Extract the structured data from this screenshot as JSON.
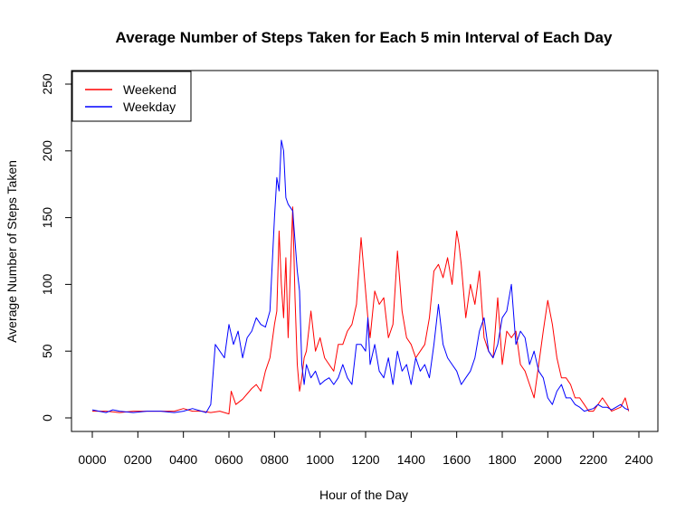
{
  "chart_data": {
    "type": "line",
    "title": "Average Number of Steps Taken for Each 5 min Interval of Each Day",
    "xlabel": "Hour of the Day",
    "ylabel": "Average Number of Steps Taken",
    "xlim": [
      0,
      2400
    ],
    "ylim": [
      0,
      250
    ],
    "xticks": [
      "0000",
      "0200",
      "0400",
      "0600",
      "0800",
      "1000",
      "1200",
      "1400",
      "1600",
      "1800",
      "2000",
      "2200",
      "2400"
    ],
    "yticks": [
      "0",
      "50",
      "100",
      "150",
      "200",
      "250"
    ],
    "grid": false,
    "legend_position": "top-left",
    "series": [
      {
        "name": "Weekend",
        "color": "#ff0000",
        "x": [
          0,
          60,
          120,
          180,
          240,
          300,
          360,
          400,
          440,
          480,
          520,
          560,
          600,
          610,
          630,
          660,
          700,
          720,
          740,
          760,
          780,
          800,
          810,
          820,
          830,
          840,
          850,
          860,
          870,
          880,
          890,
          900,
          910,
          920,
          930,
          940,
          960,
          980,
          1000,
          1020,
          1040,
          1060,
          1080,
          1100,
          1120,
          1140,
          1160,
          1180,
          1200,
          1210,
          1220,
          1240,
          1260,
          1280,
          1300,
          1320,
          1340,
          1360,
          1380,
          1400,
          1420,
          1440,
          1460,
          1480,
          1500,
          1520,
          1540,
          1560,
          1580,
          1600,
          1610,
          1620,
          1640,
          1660,
          1680,
          1700,
          1720,
          1740,
          1760,
          1780,
          1800,
          1820,
          1840,
          1860,
          1880,
          1900,
          1920,
          1940,
          1960,
          1980,
          2000,
          2020,
          2040,
          2060,
          2080,
          2100,
          2120,
          2140,
          2160,
          2180,
          2200,
          2240,
          2280,
          2320,
          2340,
          2355
        ],
        "y": [
          5,
          5,
          4,
          5,
          5,
          5,
          5,
          7,
          5,
          5,
          4,
          5,
          3,
          20,
          10,
          14,
          22,
          25,
          20,
          35,
          45,
          70,
          80,
          140,
          100,
          75,
          120,
          60,
          110,
          158,
          90,
          40,
          20,
          30,
          45,
          50,
          80,
          50,
          60,
          45,
          40,
          35,
          55,
          55,
          65,
          70,
          85,
          135,
          95,
          75,
          60,
          95,
          85,
          90,
          60,
          70,
          125,
          80,
          60,
          55,
          45,
          50,
          55,
          75,
          110,
          115,
          105,
          120,
          100,
          140,
          130,
          115,
          75,
          100,
          85,
          110,
          60,
          50,
          45,
          90,
          40,
          65,
          60,
          65,
          40,
          35,
          25,
          15,
          40,
          65,
          88,
          70,
          45,
          30,
          30,
          25,
          15,
          15,
          10,
          5,
          5,
          15,
          5,
          8,
          15,
          5
        ]
      },
      {
        "name": "Weekday",
        "color": "#0000ff",
        "x": [
          0,
          30,
          60,
          90,
          120,
          180,
          240,
          300,
          360,
          400,
          440,
          480,
          500,
          520,
          540,
          560,
          580,
          600,
          620,
          640,
          660,
          680,
          700,
          720,
          740,
          760,
          780,
          800,
          810,
          820,
          830,
          840,
          850,
          860,
          880,
          900,
          910,
          920,
          930,
          940,
          960,
          980,
          1000,
          1020,
          1040,
          1060,
          1080,
          1100,
          1120,
          1140,
          1160,
          1180,
          1200,
          1210,
          1220,
          1240,
          1260,
          1280,
          1300,
          1320,
          1340,
          1360,
          1380,
          1400,
          1420,
          1440,
          1460,
          1480,
          1500,
          1520,
          1540,
          1560,
          1580,
          1600,
          1620,
          1640,
          1660,
          1680,
          1700,
          1720,
          1740,
          1760,
          1780,
          1800,
          1820,
          1840,
          1860,
          1880,
          1900,
          1920,
          1940,
          1960,
          1980,
          2000,
          2020,
          2040,
          2060,
          2080,
          2100,
          2120,
          2140,
          2160,
          2180,
          2200,
          2220,
          2240,
          2260,
          2280,
          2300,
          2320,
          2340,
          2355
        ],
        "y": [
          6,
          5,
          4,
          6,
          5,
          4,
          5,
          5,
          4,
          5,
          7,
          5,
          4,
          10,
          55,
          50,
          45,
          70,
          55,
          65,
          45,
          60,
          65,
          75,
          70,
          68,
          80,
          150,
          180,
          170,
          208,
          200,
          165,
          160,
          155,
          110,
          95,
          40,
          25,
          40,
          30,
          35,
          25,
          28,
          30,
          25,
          30,
          40,
          30,
          25,
          55,
          55,
          50,
          75,
          40,
          55,
          35,
          30,
          45,
          25,
          50,
          35,
          40,
          25,
          45,
          35,
          40,
          30,
          55,
          85,
          55,
          45,
          40,
          35,
          25,
          30,
          35,
          45,
          65,
          75,
          50,
          45,
          55,
          75,
          80,
          100,
          55,
          65,
          60,
          40,
          50,
          35,
          30,
          15,
          10,
          20,
          25,
          15,
          15,
          10,
          8,
          5,
          6,
          7,
          10,
          8,
          8,
          6,
          8,
          10,
          7,
          6
        ]
      }
    ]
  }
}
